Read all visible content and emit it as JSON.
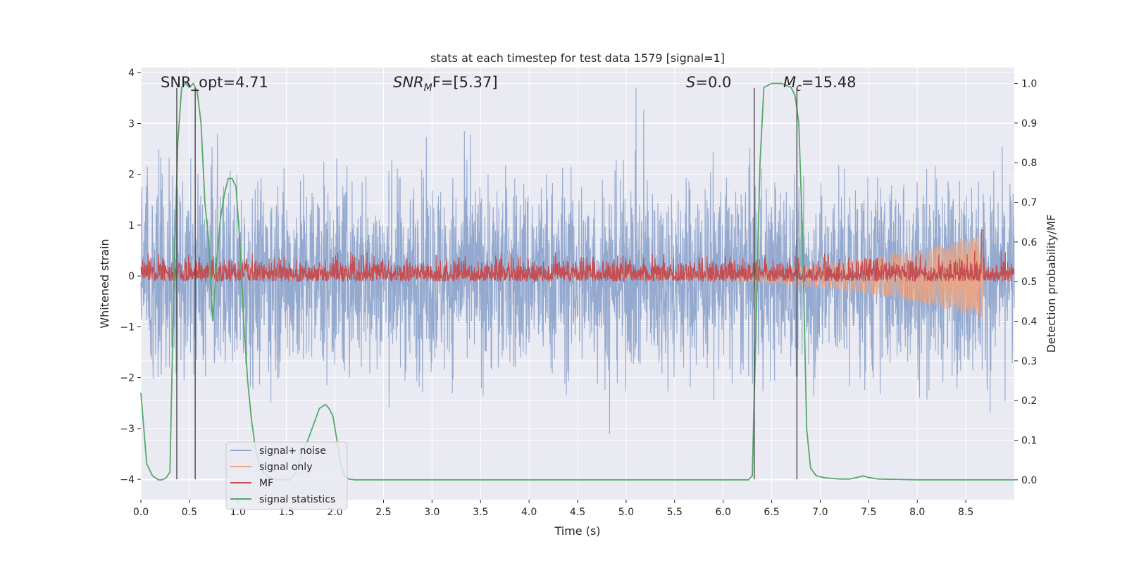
{
  "chart_data": {
    "type": "line",
    "title": "stats at each timestep for test data 1579 [signal=1]",
    "xlabel": "Time (s)",
    "ylabel_left": "Whitened strain",
    "ylabel_right": "Detection probability/MF",
    "xlim": [
      0,
      9.0
    ],
    "ylim_left": [
      -4.4,
      4.1
    ],
    "ylim_right": [
      -0.05,
      1.04
    ],
    "xticks": [
      0.0,
      0.5,
      1.0,
      1.5,
      2.0,
      2.5,
      3.0,
      3.5,
      4.0,
      4.5,
      5.0,
      5.5,
      6.0,
      6.5,
      7.0,
      7.5,
      8.0,
      8.5
    ],
    "xtick_labels": [
      "0.0",
      "0.5",
      "1.0",
      "1.5",
      "2.0",
      "2.5",
      "3.0",
      "3.5",
      "4.0",
      "4.5",
      "5.0",
      "5.5",
      "6.0",
      "6.5",
      "7.0",
      "7.5",
      "8.0",
      "8.5"
    ],
    "yticks_left": [
      4,
      3,
      2,
      1,
      0,
      -1,
      -2,
      -3,
      -4
    ],
    "ytick_labels_left": [
      "4",
      "3",
      "2",
      "1",
      "0",
      "−1",
      "−2",
      "−3",
      "−4"
    ],
    "yticks_right": [
      1.0,
      0.9,
      0.8,
      0.7,
      0.6,
      0.5,
      0.4,
      0.3,
      0.2,
      0.1,
      0.0
    ],
    "ytick_labels_right": [
      "1.0",
      "0.9",
      "0.8",
      "0.7",
      "0.6",
      "0.5",
      "0.4",
      "0.3",
      "0.2",
      "0.1",
      "0.0"
    ],
    "grid": true,
    "legend_placement": "lower-left",
    "annotations": {
      "snr_opt": "SNR_opt=4.71",
      "snr_mf_prefix": "SNR",
      "snr_mf_sub": "M",
      "snr_mf_suffix": "F=[5.37]",
      "s_prefix": "S",
      "s_suffix": "=0.0",
      "mc_prefix": "M",
      "mc_sub": "c",
      "mc_suffix": "=15.48"
    },
    "vertical_markers_x": [
      0.37,
      0.56,
      6.32,
      6.76
    ],
    "series": [
      {
        "name": "signal+ noise",
        "axis": "left",
        "color": "#8fa5cc",
        "description_range": [
          -4.0,
          3.7
        ],
        "x_range": [
          0.0,
          9.0
        ]
      },
      {
        "name": "signal only",
        "axis": "left",
        "color": "#e8a688",
        "x_range": [
          0.0,
          8.68
        ],
        "amplitude_end": 0.85
      },
      {
        "name": "MF",
        "axis": "right",
        "color": "#c44e52",
        "x_range": [
          0.0,
          9.0
        ],
        "baseline": 0.5,
        "spike_x": 8.67,
        "spike_value": 0.63
      },
      {
        "name": "signal statistics",
        "axis": "right",
        "color": "#55a868",
        "x": [
          0.0,
          0.06,
          0.12,
          0.18,
          0.22,
          0.26,
          0.3,
          0.34,
          0.38,
          0.42,
          0.46,
          0.5,
          0.54,
          0.58,
          0.62,
          0.66,
          0.7,
          0.74,
          0.78,
          0.82,
          0.86,
          0.9,
          0.94,
          0.98,
          1.02,
          1.06,
          1.1,
          1.14,
          1.18,
          1.22,
          1.26,
          1.3,
          1.36,
          1.42,
          1.48,
          1.54,
          1.6,
          1.66,
          1.72,
          1.78,
          1.84,
          1.9,
          1.94,
          1.98,
          2.02,
          2.06,
          2.1,
          2.14,
          2.2,
          2.3,
          3.0,
          4.0,
          5.0,
          6.0,
          6.2,
          6.26,
          6.3,
          6.34,
          6.38,
          6.42,
          6.5,
          6.6,
          6.7,
          6.74,
          6.78,
          6.82,
          6.86,
          6.9,
          6.96,
          7.05,
          7.2,
          7.3,
          7.38,
          7.44,
          7.5,
          7.6,
          8.0,
          8.5,
          9.0
        ],
        "values": [
          0.22,
          0.04,
          0.01,
          0.0,
          0.0,
          0.005,
          0.02,
          0.5,
          0.85,
          0.99,
          1.0,
          0.99,
          1.0,
          0.98,
          0.9,
          0.7,
          0.6,
          0.4,
          0.55,
          0.66,
          0.72,
          0.76,
          0.76,
          0.74,
          0.6,
          0.4,
          0.25,
          0.15,
          0.08,
          0.04,
          0.02,
          0.01,
          0.003,
          0.001,
          0.0,
          0.0,
          0.02,
          0.07,
          0.1,
          0.14,
          0.18,
          0.19,
          0.18,
          0.16,
          0.1,
          0.04,
          0.01,
          0.002,
          0.0,
          0.0,
          0.0,
          0.0,
          0.0,
          0.0,
          0.0,
          0.0,
          0.01,
          0.4,
          0.8,
          0.99,
          1.0,
          1.0,
          0.99,
          0.97,
          0.9,
          0.6,
          0.13,
          0.03,
          0.01,
          0.005,
          0.002,
          0.002,
          0.006,
          0.01,
          0.006,
          0.002,
          0.0,
          0.0,
          0.0
        ]
      }
    ]
  }
}
